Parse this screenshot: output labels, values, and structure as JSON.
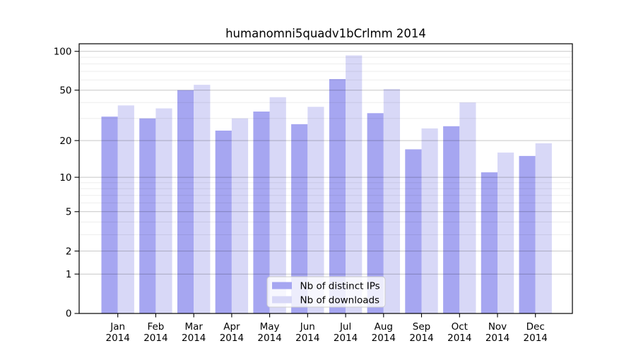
{
  "title": "humanomni5quadv1bCrlmm 2014",
  "chart_data": {
    "type": "bar",
    "title": "humanomni5quadv1bCrlmm 2014",
    "categories": [
      "Jan",
      "Feb",
      "Mar",
      "Apr",
      "May",
      "Jun",
      "Jul",
      "Aug",
      "Sep",
      "Oct",
      "Nov",
      "Dec"
    ],
    "year": "2014",
    "series": [
      {
        "name": "Nb of distinct IPs",
        "color": "#a6a6f1",
        "values": [
          31,
          30,
          50,
          24,
          34,
          27,
          61,
          33,
          17,
          26,
          11,
          15
        ]
      },
      {
        "name": "Nb of downloads",
        "color": "#d8d8f7",
        "values": [
          38,
          36,
          55,
          30,
          44,
          37,
          93,
          51,
          25,
          40,
          16,
          19
        ]
      }
    ],
    "yscale": "log10(1+x)",
    "yticks": [
      0,
      1,
      2,
      5,
      10,
      20,
      50,
      100
    ],
    "minor_gridlines": [
      3,
      4,
      6,
      7,
      8,
      9,
      30,
      40,
      60,
      70,
      80,
      90
    ],
    "ylim": [
      0,
      115
    ],
    "xlabel": "",
    "ylabel": "",
    "grid": true,
    "legend_position": "lower center",
    "colors": {
      "major_grid": "rgba(0,0,0,0.22)",
      "minor_grid": "rgba(0,0,0,0.07)",
      "axis": "#000000"
    }
  }
}
